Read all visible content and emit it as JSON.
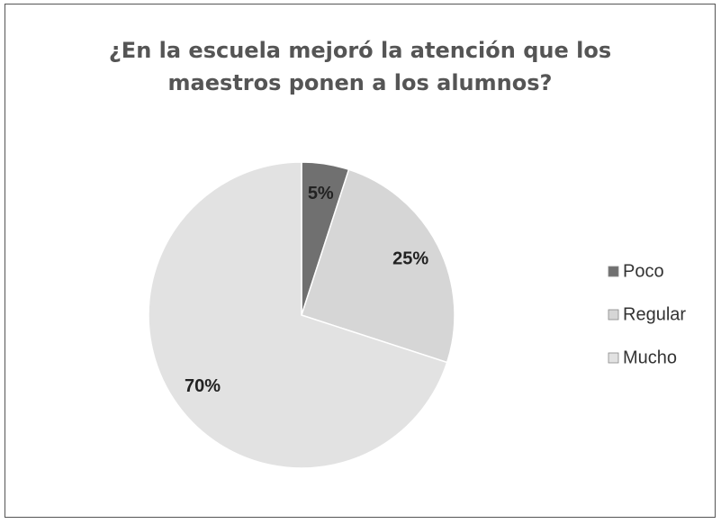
{
  "chart_data": {
    "type": "pie",
    "title": "¿En la escuela mejoró la atención que los maestros ponen a los alumnos?",
    "categories": [
      "Poco",
      "Regular",
      "Mucho"
    ],
    "values": [
      5,
      25,
      70
    ],
    "value_labels": [
      "5%",
      "25%",
      "70%"
    ],
    "colors": [
      "#707070",
      "#d6d6d6",
      "#e2e2e2"
    ],
    "legend": "right"
  }
}
